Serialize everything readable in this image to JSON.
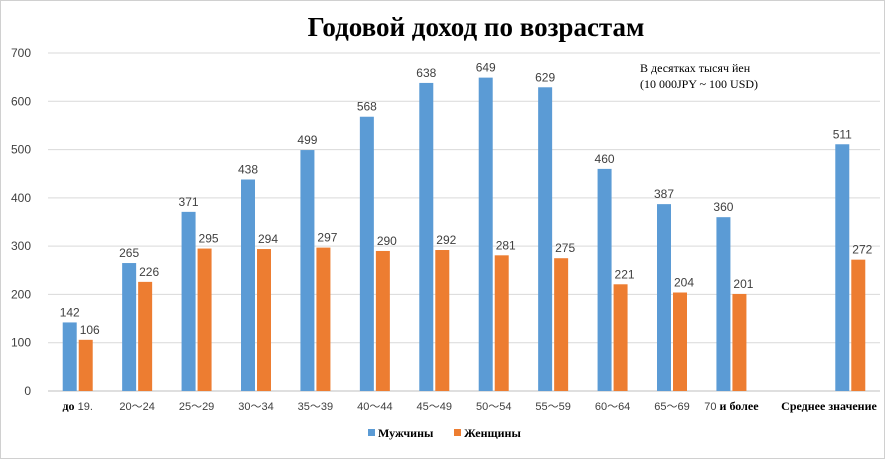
{
  "chart_data": {
    "type": "bar",
    "title": "Годовой доход по возрастам",
    "note_lines": [
      "В десятках тысяч йен",
      "(10 000JPY ~ 100 USD)"
    ],
    "categories": [
      "до 19.",
      "20～24",
      "25～29",
      "30～34",
      "35～39",
      "40～44",
      "45～49",
      "50～54",
      "55～59",
      "60～64",
      "65～69",
      "70 и более",
      "",
      "Среднее значение"
    ],
    "category_labels": [
      {
        "parts": [
          {
            "text": "до",
            "bold": true
          },
          {
            "text": "19.",
            "bold": false
          }
        ]
      },
      {
        "parts": [
          {
            "text": "20～24",
            "bold": false
          }
        ]
      },
      {
        "parts": [
          {
            "text": "25～29",
            "bold": false
          }
        ]
      },
      {
        "parts": [
          {
            "text": "30～34",
            "bold": false
          }
        ]
      },
      {
        "parts": [
          {
            "text": "35～39",
            "bold": false
          }
        ]
      },
      {
        "parts": [
          {
            "text": "40～44",
            "bold": false
          }
        ]
      },
      {
        "parts": [
          {
            "text": "45～49",
            "bold": false
          }
        ]
      },
      {
        "parts": [
          {
            "text": "50～54",
            "bold": false
          }
        ]
      },
      {
        "parts": [
          {
            "text": "55～59",
            "bold": false
          }
        ]
      },
      {
        "parts": [
          {
            "text": "60～64",
            "bold": false
          }
        ]
      },
      {
        "parts": [
          {
            "text": "65～69",
            "bold": false
          }
        ]
      },
      {
        "parts": [
          {
            "text": "70",
            "bold": false
          },
          {
            "text": "и более",
            "bold": true
          }
        ]
      },
      {
        "parts": []
      },
      {
        "parts": [
          {
            "text": "Среднее значение",
            "bold": true
          }
        ]
      }
    ],
    "series": [
      {
        "name": "Мужчины",
        "color": "#5b9bd5",
        "values": [
          142,
          265,
          371,
          438,
          499,
          568,
          638,
          649,
          629,
          460,
          387,
          360,
          null,
          511
        ]
      },
      {
        "name": "Женщины",
        "color": "#ed7d31",
        "values": [
          106,
          226,
          295,
          294,
          297,
          290,
          292,
          281,
          275,
          221,
          204,
          201,
          null,
          272
        ]
      }
    ],
    "ylim": [
      0,
      700
    ],
    "yticks": [
      0,
      100,
      200,
      300,
      400,
      500,
      600,
      700
    ],
    "xlabel": "",
    "ylabel": "",
    "grid": true,
    "legend_position": "bottom"
  }
}
